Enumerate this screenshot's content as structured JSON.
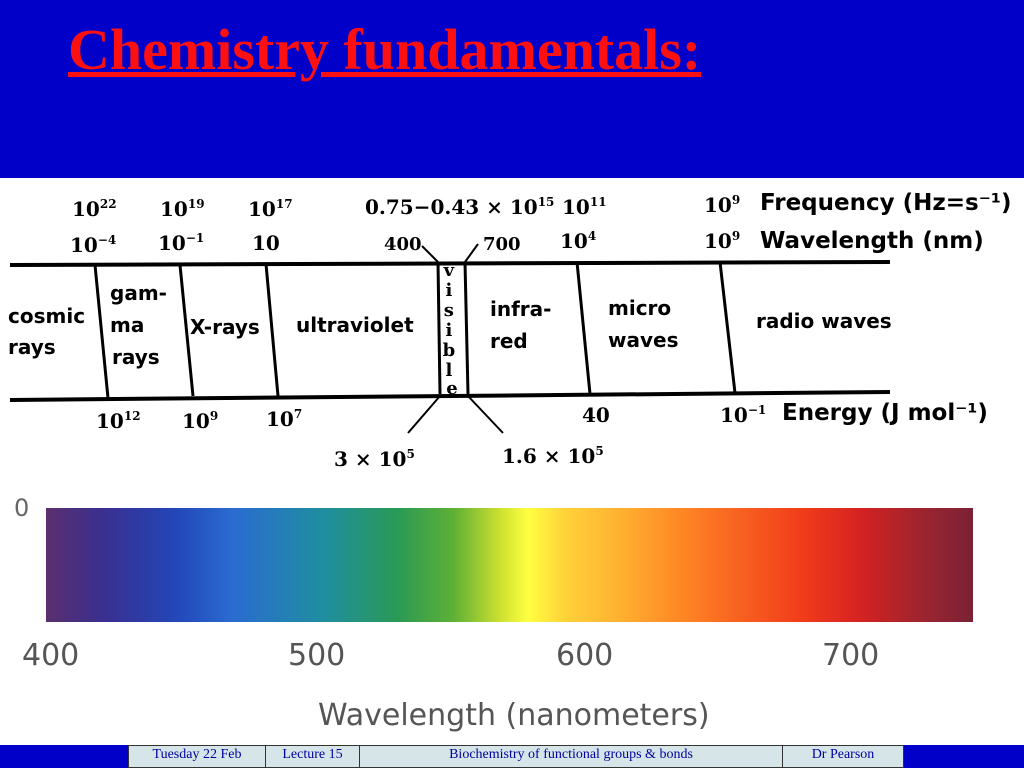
{
  "title": "Chemistry fundamentals:",
  "em_spectrum": {
    "frequency_label": "Frequency (Hz=s⁻¹)",
    "wavelength_label": "Wavelength (nm)",
    "energy_label": "Energy (J mol⁻¹)",
    "visible_range_frequency": "0.75−0.43 × 10",
    "visible_range_frequency_exp": "15",
    "frequency_ticks": [
      {
        "base": "10",
        "exp": "22"
      },
      {
        "base": "10",
        "exp": "19"
      },
      {
        "base": "10",
        "exp": "17"
      },
      {
        "base": "10",
        "exp": "11"
      },
      {
        "base": "10",
        "exp": "9"
      }
    ],
    "wavelength_ticks": [
      {
        "base": "10",
        "exp": "−4"
      },
      {
        "base": "10",
        "exp": "−1"
      },
      {
        "base": "10",
        "exp": ""
      },
      {
        "base": "400",
        "exp": ""
      },
      {
        "base": "700",
        "exp": ""
      },
      {
        "base": "10",
        "exp": "4"
      },
      {
        "base": "10",
        "exp": "9"
      }
    ],
    "energy_ticks": [
      {
        "base": "10",
        "exp": "12"
      },
      {
        "base": "10",
        "exp": "9"
      },
      {
        "base": "10",
        "exp": "7"
      },
      {
        "base": "40",
        "exp": ""
      },
      {
        "base": "10",
        "exp": "−1"
      }
    ],
    "visible_energy_left": {
      "base": "3 × 10",
      "exp": "5"
    },
    "visible_energy_right": {
      "base": "1.6 × 10",
      "exp": "5"
    },
    "regions": {
      "cosmic": [
        "cosmic",
        "rays"
      ],
      "gamma": [
        "gam-",
        "ma",
        "rays"
      ],
      "xrays": "X-rays",
      "uv": "ultraviolet",
      "visible": [
        "v",
        "i",
        "s",
        "i",
        "b",
        "l",
        "e"
      ],
      "ir": [
        "infra-",
        "red"
      ],
      "micro": [
        "micro",
        "waves"
      ],
      "radio": "radio waves"
    }
  },
  "visible_spectrum": {
    "ticks": [
      "400",
      "500",
      "600",
      "700"
    ],
    "axis_label": "Wavelength (nanometers)",
    "edge_label": "0"
  },
  "footer": {
    "date": "Tuesday 22 Feb",
    "lecture": "Lecture 15",
    "topic": "Biochemistry of functional groups & bonds",
    "author": "Dr Pearson"
  }
}
